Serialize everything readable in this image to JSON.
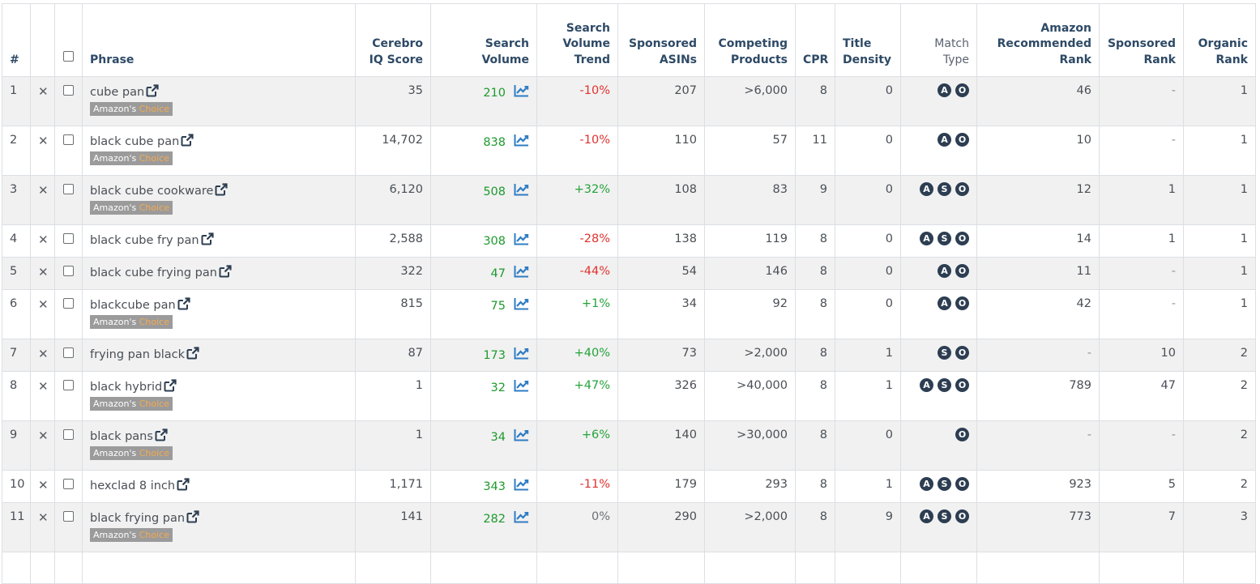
{
  "headers": {
    "rank": "#",
    "phrase": "Phrase",
    "cerebro": [
      "Cerebro",
      "IQ Score"
    ],
    "search_volume": "Search Volume",
    "sv_trend": [
      "Search",
      "Volume",
      "Trend"
    ],
    "sponsored_asins": [
      "Sponsored",
      "ASINs"
    ],
    "competing": [
      "Competing",
      "Products"
    ],
    "cpr": "CPR",
    "title_density": [
      "Title",
      "Density"
    ],
    "match_type": [
      "Match",
      "Type"
    ],
    "amazon_rank": [
      "Amazon",
      "Recommended",
      "Rank"
    ],
    "sponsored_rank": [
      "Sponsored",
      "Rank"
    ],
    "organic_rank": [
      "Organic",
      "Rank"
    ]
  },
  "badge": {
    "prefix": "Amazon's",
    "suffix": "Choice"
  },
  "icons": {
    "remove": "close-icon",
    "external": "external-link-icon",
    "trend": "trend-chart-icon"
  },
  "colors": {
    "positive": "#24a33a",
    "negative": "#e0312e",
    "volume": "#1e9a2e",
    "badge_bg": "#9b9b9b",
    "choice": "#f6a94f",
    "match_bg": "#2d3e52",
    "header": "#2e4a66"
  },
  "rows": [
    {
      "n": "1",
      "phrase": "cube pan",
      "choice": true,
      "iq": "35",
      "sv": "210",
      "trend": "-10%",
      "sign": "neg",
      "asins": "207",
      "comp": ">6,000",
      "cpr": "8",
      "td": "0",
      "match": [
        "A",
        "O"
      ],
      "arr": "46",
      "sr": "-",
      "or": "1"
    },
    {
      "n": "2",
      "phrase": "black cube pan",
      "choice": true,
      "iq": "14,702",
      "sv": "838",
      "trend": "-10%",
      "sign": "neg",
      "asins": "110",
      "comp": "57",
      "cpr": "11",
      "td": "0",
      "match": [
        "A",
        "O"
      ],
      "arr": "10",
      "sr": "-",
      "or": "1"
    },
    {
      "n": "3",
      "phrase": "black cube cookware",
      "choice": true,
      "iq": "6,120",
      "sv": "508",
      "trend": "+32%",
      "sign": "pos",
      "asins": "108",
      "comp": "83",
      "cpr": "9",
      "td": "0",
      "match": [
        "A",
        "S",
        "O"
      ],
      "arr": "12",
      "sr": "1",
      "or": "1"
    },
    {
      "n": "4",
      "phrase": "black cube fry pan",
      "choice": false,
      "iq": "2,588",
      "sv": "308",
      "trend": "-28%",
      "sign": "neg",
      "asins": "138",
      "comp": "119",
      "cpr": "8",
      "td": "0",
      "match": [
        "A",
        "S",
        "O"
      ],
      "arr": "14",
      "sr": "1",
      "or": "1"
    },
    {
      "n": "5",
      "phrase": "black cube frying pan",
      "choice": false,
      "iq": "322",
      "sv": "47",
      "trend": "-44%",
      "sign": "neg",
      "asins": "54",
      "comp": "146",
      "cpr": "8",
      "td": "0",
      "match": [
        "A",
        "O"
      ],
      "arr": "11",
      "sr": "-",
      "or": "1"
    },
    {
      "n": "6",
      "phrase": "blackcube pan",
      "choice": true,
      "iq": "815",
      "sv": "75",
      "trend": "+1%",
      "sign": "pos",
      "asins": "34",
      "comp": "92",
      "cpr": "8",
      "td": "0",
      "match": [
        "A",
        "O"
      ],
      "arr": "42",
      "sr": "-",
      "or": "1"
    },
    {
      "n": "7",
      "phrase": "frying pan black",
      "choice": false,
      "iq": "87",
      "sv": "173",
      "trend": "+40%",
      "sign": "pos",
      "asins": "73",
      "comp": ">2,000",
      "cpr": "8",
      "td": "1",
      "match": [
        "S",
        "O"
      ],
      "arr": "-",
      "sr": "10",
      "or": "2"
    },
    {
      "n": "8",
      "phrase": "black hybrid",
      "choice": true,
      "iq": "1",
      "sv": "32",
      "trend": "+47%",
      "sign": "pos",
      "asins": "326",
      "comp": ">40,000",
      "cpr": "8",
      "td": "1",
      "match": [
        "A",
        "S",
        "O"
      ],
      "arr": "789",
      "sr": "47",
      "or": "2"
    },
    {
      "n": "9",
      "phrase": "black pans",
      "choice": true,
      "iq": "1",
      "sv": "34",
      "trend": "+6%",
      "sign": "pos",
      "asins": "140",
      "comp": ">30,000",
      "cpr": "8",
      "td": "0",
      "match": [
        "O"
      ],
      "arr": "-",
      "sr": "-",
      "or": "2"
    },
    {
      "n": "10",
      "phrase": "hexclad 8 inch",
      "choice": false,
      "iq": "1,171",
      "sv": "343",
      "trend": "-11%",
      "sign": "neg",
      "asins": "179",
      "comp": "293",
      "cpr": "8",
      "td": "1",
      "match": [
        "A",
        "S",
        "O"
      ],
      "arr": "923",
      "sr": "5",
      "or": "2"
    },
    {
      "n": "11",
      "phrase": "black frying pan",
      "choice": true,
      "iq": "141",
      "sv": "282",
      "trend": "0%",
      "sign": "zero",
      "asins": "290",
      "comp": ">2,000",
      "cpr": "8",
      "td": "9",
      "match": [
        "A",
        "S",
        "O"
      ],
      "arr": "773",
      "sr": "7",
      "or": "3"
    }
  ]
}
